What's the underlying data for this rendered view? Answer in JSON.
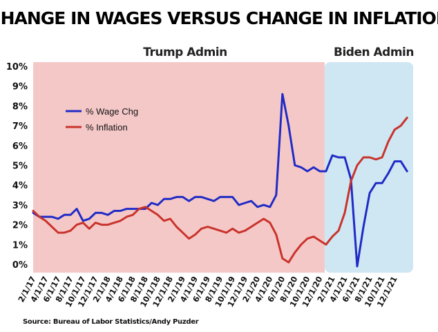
{
  "chart_data": {
    "type": "line",
    "title": "CHANGE IN WAGES VERSUS CHANGE IN INFLATION",
    "regions": [
      {
        "label": "Trump Admin",
        "x_start": 0,
        "x_end": 47,
        "color": "#f5c8c8"
      },
      {
        "label": "Biden Admin",
        "x_start": 47,
        "x_end": 60,
        "color": "#cfe6f3"
      }
    ],
    "y_ticks": [
      "0%",
      "1%",
      "2%",
      "3%",
      "4%",
      "5%",
      "6%",
      "7%",
      "8%",
      "9%",
      "10%"
    ],
    "ylim": [
      0,
      10
    ],
    "x_ticks": [
      {
        "index": 0,
        "label": "2/1/17"
      },
      {
        "index": 2,
        "label": "4/1/17"
      },
      {
        "index": 4,
        "label": "6/1/17"
      },
      {
        "index": 6,
        "label": "8/1/17"
      },
      {
        "index": 8,
        "label": "10/1/17"
      },
      {
        "index": 10,
        "label": "12/1/17"
      },
      {
        "index": 12,
        "label": "2/1/18"
      },
      {
        "index": 14,
        "label": "4/1/18"
      },
      {
        "index": 16,
        "label": "6/1/18"
      },
      {
        "index": 18,
        "label": "8/1/18"
      },
      {
        "index": 20,
        "label": "10/1/18"
      },
      {
        "index": 22,
        "label": "12/1/18"
      },
      {
        "index": 24,
        "label": "2/1/19"
      },
      {
        "index": 26,
        "label": "4/1/19"
      },
      {
        "index": 28,
        "label": "6/1/19"
      },
      {
        "index": 30,
        "label": "8/1/19"
      },
      {
        "index": 32,
        "label": "10/1/19"
      },
      {
        "index": 34,
        "label": "12/1/19"
      },
      {
        "index": 36,
        "label": "2/1/20"
      },
      {
        "index": 38,
        "label": "4/1/20"
      },
      {
        "index": 40,
        "label": "6/1/20"
      },
      {
        "index": 42,
        "label": "8/1/20"
      },
      {
        "index": 44,
        "label": "10/1/20"
      },
      {
        "index": 46,
        "label": "12/1/20"
      },
      {
        "index": 48,
        "label": "2/1/21"
      },
      {
        "index": 50,
        "label": "4/1/21"
      },
      {
        "index": 52,
        "label": "6/1/21"
      },
      {
        "index": 54,
        "label": "8/1/21"
      },
      {
        "index": 56,
        "label": "10/1/21"
      },
      {
        "index": 58,
        "label": "12/1/21"
      }
    ],
    "series": [
      {
        "name": "% Wage Chg",
        "color": "#1f2bc4",
        "values": [
          2.6,
          2.4,
          2.4,
          2.4,
          2.3,
          2.5,
          2.5,
          2.8,
          2.2,
          2.3,
          2.6,
          2.6,
          2.5,
          2.7,
          2.7,
          2.8,
          2.8,
          2.8,
          2.8,
          3.1,
          3.0,
          3.3,
          3.3,
          3.4,
          3.4,
          3.2,
          3.4,
          3.4,
          3.3,
          3.2,
          3.4,
          3.4,
          3.4,
          3.0,
          3.1,
          3.2,
          2.9,
          3.0,
          2.9,
          3.5,
          8.6,
          7.0,
          5.0,
          4.9,
          4.7,
          4.9,
          4.7,
          4.7,
          5.5,
          5.4,
          5.4,
          4.3,
          -0.1,
          1.9,
          3.6,
          4.1,
          4.1,
          4.6,
          5.2,
          5.2,
          4.7
        ]
      },
      {
        "name": "% Inflation",
        "color": "#c8332b",
        "values": [
          2.7,
          2.4,
          2.2,
          1.9,
          1.6,
          1.6,
          1.7,
          2.0,
          2.1,
          1.8,
          2.1,
          2.0,
          2.0,
          2.1,
          2.2,
          2.4,
          2.5,
          2.8,
          2.9,
          2.7,
          2.5,
          2.2,
          2.3,
          1.9,
          1.6,
          1.3,
          1.5,
          1.8,
          1.9,
          1.8,
          1.7,
          1.6,
          1.8,
          1.6,
          1.7,
          1.9,
          2.1,
          2.3,
          2.1,
          1.5,
          0.3,
          0.1,
          0.6,
          1.0,
          1.3,
          1.4,
          1.2,
          1.0,
          1.4,
          1.7,
          2.6,
          4.2,
          5.0,
          5.4,
          5.4,
          5.3,
          5.4,
          6.2,
          6.8,
          7.0,
          7.4
        ]
      }
    ],
    "legend_position": "upper-left",
    "grid": false,
    "source": "Source: Bureau of Labor Statistics/Andy Puzder"
  }
}
